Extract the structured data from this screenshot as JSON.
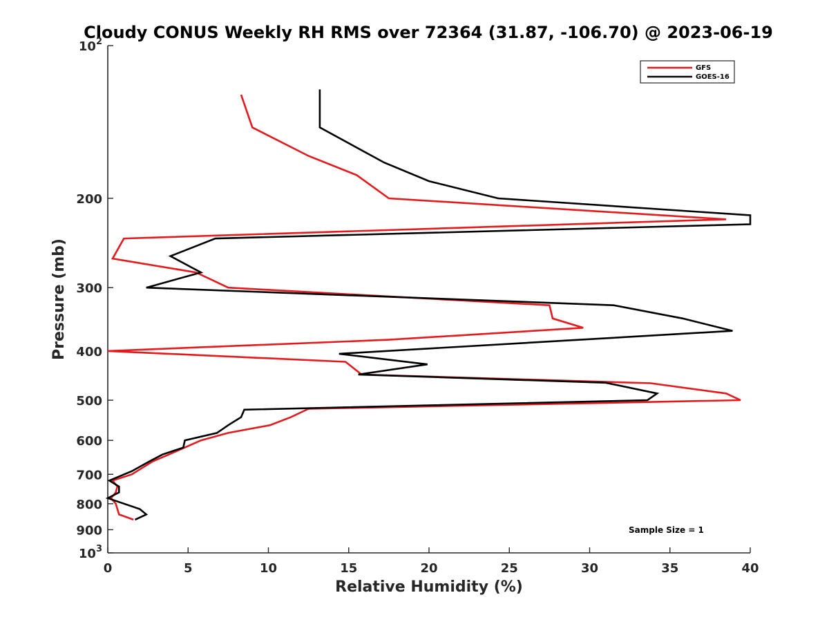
{
  "chart_data": {
    "type": "line",
    "title": "Cloudy CONUS Weekly RH RMS over 72364 (31.87, -106.70) @ 2023-06-19",
    "xlabel": "Relative Humidity (%)",
    "ylabel": "Pressure (mb)",
    "xlim": [
      0,
      40
    ],
    "ylim": [
      100,
      1000
    ],
    "y_scale": "log",
    "y_reversed": true,
    "grid": false,
    "x_ticks": [
      "0",
      "5",
      "10",
      "15",
      "20",
      "25",
      "30",
      "35",
      "40"
    ],
    "x_tick_values": [
      0,
      5,
      10,
      15,
      20,
      25,
      30,
      35,
      40
    ],
    "y_ticks": [
      {
        "value": 100,
        "label": "10",
        "sup": "2"
      },
      {
        "value": 200,
        "label": "200",
        "sup": ""
      },
      {
        "value": 300,
        "label": "300",
        "sup": ""
      },
      {
        "value": 400,
        "label": "400",
        "sup": ""
      },
      {
        "value": 500,
        "label": "500",
        "sup": ""
      },
      {
        "value": 600,
        "label": "600",
        "sup": ""
      },
      {
        "value": 700,
        "label": "700",
        "sup": ""
      },
      {
        "value": 800,
        "label": "800",
        "sup": ""
      },
      {
        "value": 900,
        "label": "900",
        "sup": ""
      },
      {
        "value": 1000,
        "label": "10",
        "sup": "3"
      }
    ],
    "legend": {
      "position": "top-right"
    },
    "annotation": "Sample Size = 1",
    "series": [
      {
        "name": "GFS",
        "color": "#e41a1c",
        "points": [
          [
            8.3,
            125
          ],
          [
            9.0,
            145
          ],
          [
            12.5,
            165
          ],
          [
            15.5,
            180
          ],
          [
            17.5,
            200
          ],
          [
            38.5,
            220
          ],
          [
            1.0,
            240
          ],
          [
            0.3,
            263
          ],
          [
            5.5,
            280
          ],
          [
            7.5,
            300
          ],
          [
            27.5,
            325
          ],
          [
            27.7,
            345
          ],
          [
            29.6,
            360
          ],
          [
            17.5,
            380
          ],
          [
            0.0,
            400
          ],
          [
            14.8,
            420
          ],
          [
            15.8,
            445
          ],
          [
            33.8,
            463
          ],
          [
            38.5,
            485
          ],
          [
            39.4,
            500
          ],
          [
            12.5,
            520
          ],
          [
            11.4,
            540
          ],
          [
            10.1,
            560
          ],
          [
            7.5,
            580
          ],
          [
            5.8,
            600
          ],
          [
            3.8,
            640
          ],
          [
            2.8,
            660
          ],
          [
            1.5,
            700
          ],
          [
            0.3,
            720
          ],
          [
            0.6,
            740
          ],
          [
            0.5,
            760
          ],
          [
            0.2,
            780
          ],
          [
            0.5,
            800
          ],
          [
            0.7,
            840
          ],
          [
            1.6,
            860
          ]
        ]
      },
      {
        "name": "GOES-16",
        "color": "#000000",
        "points": [
          [
            13.2,
            122
          ],
          [
            13.2,
            145
          ],
          [
            17.2,
            170
          ],
          [
            20.0,
            185
          ],
          [
            24.3,
            200
          ],
          [
            40.0,
            216
          ],
          [
            40.0,
            225
          ],
          [
            6.7,
            240
          ],
          [
            3.9,
            260
          ],
          [
            5.8,
            280
          ],
          [
            2.4,
            300
          ],
          [
            31.5,
            325
          ],
          [
            35.8,
            345
          ],
          [
            38.9,
            365
          ],
          [
            29.4,
            380
          ],
          [
            14.4,
            405
          ],
          [
            19.9,
            425
          ],
          [
            15.6,
            445
          ],
          [
            31.0,
            462
          ],
          [
            34.2,
            485
          ],
          [
            33.6,
            500
          ],
          [
            8.5,
            522
          ],
          [
            8.3,
            540
          ],
          [
            7.5,
            560
          ],
          [
            6.8,
            580
          ],
          [
            4.8,
            600
          ],
          [
            4.7,
            620
          ],
          [
            3.4,
            640
          ],
          [
            2.6,
            660
          ],
          [
            1.5,
            690
          ],
          [
            0.1,
            720
          ],
          [
            0.7,
            740
          ],
          [
            0.7,
            760
          ],
          [
            0.0,
            780
          ],
          [
            2.0,
            820
          ],
          [
            2.4,
            840
          ],
          [
            1.7,
            860
          ]
        ]
      }
    ]
  }
}
